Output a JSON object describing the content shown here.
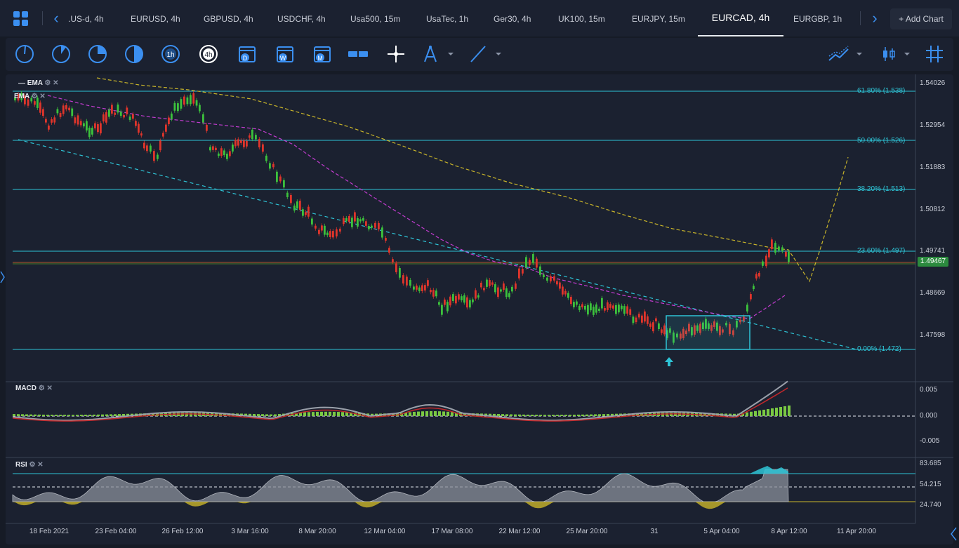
{
  "tabs": [
    {
      "label": ".US-d, 4h"
    },
    {
      "label": "EURUSD, 4h"
    },
    {
      "label": "GBPUSD, 4h"
    },
    {
      "label": "USDCHF, 4h"
    },
    {
      "label": "Usa500, 15m"
    },
    {
      "label": "UsaTec, 1h"
    },
    {
      "label": "Ger30, 4h"
    },
    {
      "label": "UK100, 15m"
    },
    {
      "label": "EURJPY, 15m"
    },
    {
      "label": "EURCAD, 4h"
    },
    {
      "label": "EURGBP, 1h"
    }
  ],
  "active_tab": "EURCAD, 4h",
  "add_chart_label": "Add Chart",
  "add_chart_plus": "+",
  "toolbar": {
    "timeframe_icons": [
      "1h",
      "4h"
    ],
    "calendar_icons": [
      "D",
      "W",
      "M"
    ]
  },
  "chart": {
    "main_indicator_1": "EMA",
    "main_indicator_2": "EMA",
    "fib_levels": [
      {
        "label": "61.80% (1.538)"
      },
      {
        "label": "50.00% (1.526)"
      },
      {
        "label": "38.20% (1.513)"
      },
      {
        "label": "23.60% (1.497)"
      },
      {
        "label": "0.00% (1.472)"
      }
    ],
    "price_axis": [
      "1.54026",
      "1.52954",
      "1.51883",
      "1.50812",
      "1.49741",
      "1.48669",
      "1.47598"
    ],
    "current_price": "1.49467",
    "macd_title": "MACD",
    "macd_axis": [
      "0.005",
      "0.000",
      "-0.005"
    ],
    "rsi_title": "RSI",
    "rsi_axis": [
      "83.685",
      "54.215",
      "24.740"
    ],
    "time_axis": [
      "18 Feb 2021",
      "23 Feb 04:00",
      "26 Feb 12:00",
      "3 Mar 16:00",
      "8 Mar 20:00",
      "12 Mar 04:00",
      "17 Mar 08:00",
      "22 Mar 12:00",
      "25 Mar 20:00",
      "31",
      "5 Apr 04:00",
      "8 Apr 12:00",
      "11 Apr 20:00"
    ]
  },
  "colors": {
    "background": "#1b2130",
    "fib": "#2ec4d6",
    "bull": "#3cc23c",
    "bear": "#e0352b",
    "ema_fast": "#c23ccf",
    "ema_slow": "#c9b52a",
    "accent": "#3b8ff0"
  }
}
